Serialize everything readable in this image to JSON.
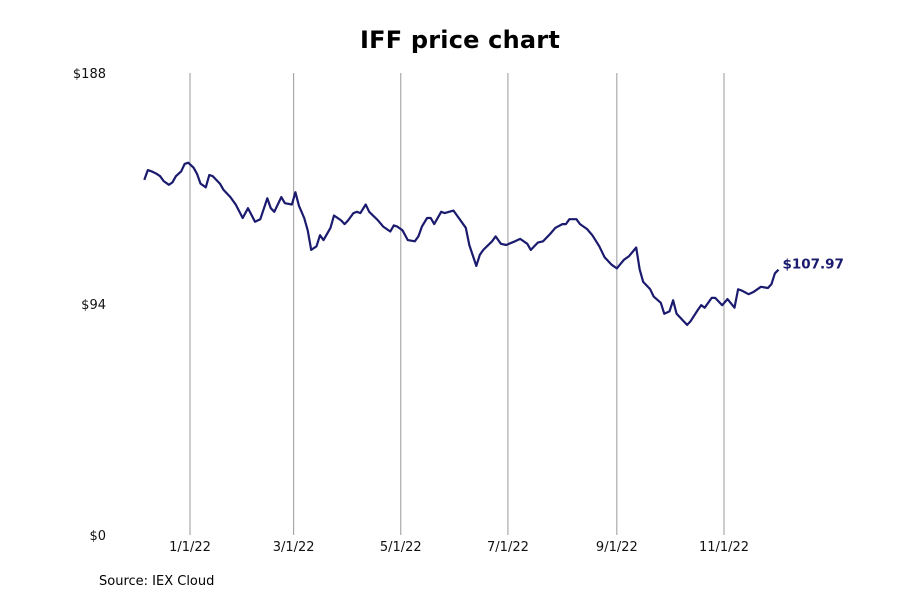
{
  "chart_data": {
    "type": "line",
    "title": "IFF price chart",
    "xlabel": "",
    "ylabel": "",
    "ylim": [
      0,
      188
    ],
    "yticks": [
      {
        "value": 0,
        "label": "$0"
      },
      {
        "value": 94,
        "label": "$94"
      },
      {
        "value": 188,
        "label": "$188"
      }
    ],
    "x_range": [
      "2021-11-01",
      "2022-12-31"
    ],
    "xticks": [
      {
        "date": "2022-01-01",
        "label": "1/1/22"
      },
      {
        "date": "2022-03-01",
        "label": "3/1/22"
      },
      {
        "date": "2022-05-01",
        "label": "5/1/22"
      },
      {
        "date": "2022-07-01",
        "label": "7/1/22"
      },
      {
        "date": "2022-09-01",
        "label": "9/1/22"
      },
      {
        "date": "2022-11-01",
        "label": "11/1/22"
      }
    ],
    "grid": "vertical lines at x ticks",
    "line_color": "#1a1a6e",
    "grid_color": "#999999",
    "end_label": "$107.97",
    "series": [
      {
        "points": [
          [
            "2021-12-06",
            144.5
          ],
          [
            "2021-12-08",
            148.5
          ],
          [
            "2021-12-10",
            148.0
          ],
          [
            "2021-12-13",
            147.0
          ],
          [
            "2021-12-15",
            146.0
          ],
          [
            "2021-12-17",
            144.0
          ],
          [
            "2021-12-20",
            142.5
          ],
          [
            "2021-12-22",
            143.5
          ],
          [
            "2021-12-24",
            146.0
          ],
          [
            "2021-12-27",
            148.0
          ],
          [
            "2021-12-29",
            151.0
          ],
          [
            "2021-12-31",
            151.5
          ],
          [
            "2022-01-03",
            149.5
          ],
          [
            "2022-01-05",
            147.0
          ],
          [
            "2022-01-07",
            143.0
          ],
          [
            "2022-01-10",
            141.5
          ],
          [
            "2022-01-12",
            146.5
          ],
          [
            "2022-01-14",
            146.0
          ],
          [
            "2022-01-18",
            143.0
          ],
          [
            "2022-01-20",
            140.5
          ],
          [
            "2022-01-24",
            137.5
          ],
          [
            "2022-01-27",
            134.5
          ],
          [
            "2022-01-31",
            129.0
          ],
          [
            "2022-02-03",
            133.0
          ],
          [
            "2022-02-07",
            127.5
          ],
          [
            "2022-02-10",
            128.5
          ],
          [
            "2022-02-14",
            137.0
          ],
          [
            "2022-02-16",
            133.0
          ],
          [
            "2022-02-18",
            131.5
          ],
          [
            "2022-02-22",
            137.5
          ],
          [
            "2022-02-24",
            135.0
          ],
          [
            "2022-02-28",
            134.5
          ],
          [
            "2022-03-02",
            139.5
          ],
          [
            "2022-03-04",
            134.0
          ],
          [
            "2022-03-07",
            129.0
          ],
          [
            "2022-03-09",
            124.0
          ],
          [
            "2022-03-11",
            116.0
          ],
          [
            "2022-03-14",
            117.5
          ],
          [
            "2022-03-16",
            122.0
          ],
          [
            "2022-03-18",
            120.0
          ],
          [
            "2022-03-22",
            125.0
          ],
          [
            "2022-03-24",
            130.0
          ],
          [
            "2022-03-28",
            128.0
          ],
          [
            "2022-03-30",
            126.5
          ],
          [
            "2022-04-01",
            128.0
          ],
          [
            "2022-04-04",
            131.0
          ],
          [
            "2022-04-06",
            131.5
          ],
          [
            "2022-04-08",
            131.0
          ],
          [
            "2022-04-11",
            134.5
          ],
          [
            "2022-04-13",
            131.5
          ],
          [
            "2022-04-18",
            128.0
          ],
          [
            "2022-04-21",
            125.5
          ],
          [
            "2022-04-25",
            123.5
          ],
          [
            "2022-04-27",
            126.0
          ],
          [
            "2022-04-29",
            125.5
          ],
          [
            "2022-05-02",
            124.0
          ],
          [
            "2022-05-05",
            120.0
          ],
          [
            "2022-05-09",
            119.5
          ],
          [
            "2022-05-11",
            121.5
          ],
          [
            "2022-05-13",
            125.5
          ],
          [
            "2022-05-16",
            129.0
          ],
          [
            "2022-05-18",
            129.0
          ],
          [
            "2022-05-20",
            126.5
          ],
          [
            "2022-05-24",
            131.5
          ],
          [
            "2022-05-26",
            131.0
          ],
          [
            "2022-05-31",
            132.0
          ],
          [
            "2022-06-03",
            129.0
          ],
          [
            "2022-06-07",
            125.0
          ],
          [
            "2022-06-09",
            118.0
          ],
          [
            "2022-06-13",
            109.5
          ],
          [
            "2022-06-15",
            114.0
          ],
          [
            "2022-06-17",
            116.0
          ],
          [
            "2022-06-22",
            119.5
          ],
          [
            "2022-06-24",
            121.5
          ],
          [
            "2022-06-27",
            118.5
          ],
          [
            "2022-06-30",
            118.0
          ],
          [
            "2022-07-05",
            119.5
          ],
          [
            "2022-07-08",
            120.5
          ],
          [
            "2022-07-12",
            118.5
          ],
          [
            "2022-07-14",
            116.0
          ],
          [
            "2022-07-18",
            119.0
          ],
          [
            "2022-07-21",
            119.5
          ],
          [
            "2022-07-25",
            122.5
          ],
          [
            "2022-07-28",
            125.0
          ],
          [
            "2022-08-01",
            126.5
          ],
          [
            "2022-08-03",
            126.5
          ],
          [
            "2022-08-05",
            128.5
          ],
          [
            "2022-08-09",
            128.5
          ],
          [
            "2022-08-11",
            126.5
          ],
          [
            "2022-08-15",
            124.5
          ],
          [
            "2022-08-18",
            122.0
          ],
          [
            "2022-08-22",
            117.5
          ],
          [
            "2022-08-25",
            113.0
          ],
          [
            "2022-08-29",
            110.0
          ],
          [
            "2022-09-01",
            108.5
          ],
          [
            "2022-09-05",
            112.0
          ],
          [
            "2022-09-08",
            113.5
          ],
          [
            "2022-09-12",
            117.0
          ],
          [
            "2022-09-14",
            108.0
          ],
          [
            "2022-09-16",
            103.0
          ],
          [
            "2022-09-20",
            100.0
          ],
          [
            "2022-09-22",
            97.0
          ],
          [
            "2022-09-26",
            94.5
          ],
          [
            "2022-09-28",
            90.0
          ],
          [
            "2022-10-01",
            91.0
          ],
          [
            "2022-10-03",
            95.5
          ],
          [
            "2022-10-05",
            90.0
          ],
          [
            "2022-10-07",
            88.5
          ],
          [
            "2022-10-11",
            85.5
          ],
          [
            "2022-10-13",
            87.0
          ],
          [
            "2022-10-17",
            91.5
          ],
          [
            "2022-10-19",
            93.5
          ],
          [
            "2022-10-21",
            92.5
          ],
          [
            "2022-10-25",
            96.5
          ],
          [
            "2022-10-27",
            96.5
          ],
          [
            "2022-10-31",
            93.5
          ],
          [
            "2022-11-03",
            96.0
          ],
          [
            "2022-11-07",
            92.5
          ],
          [
            "2022-11-09",
            100.0
          ],
          [
            "2022-11-11",
            99.5
          ],
          [
            "2022-11-15",
            98.0
          ],
          [
            "2022-11-18",
            99.0
          ],
          [
            "2022-11-22",
            101.0
          ],
          [
            "2022-11-26",
            100.5
          ],
          [
            "2022-11-28",
            102.0
          ],
          [
            "2022-11-30",
            106.5
          ],
          [
            "2022-12-02",
            107.97
          ]
        ]
      }
    ]
  },
  "source_note": "Source: IEX Cloud"
}
